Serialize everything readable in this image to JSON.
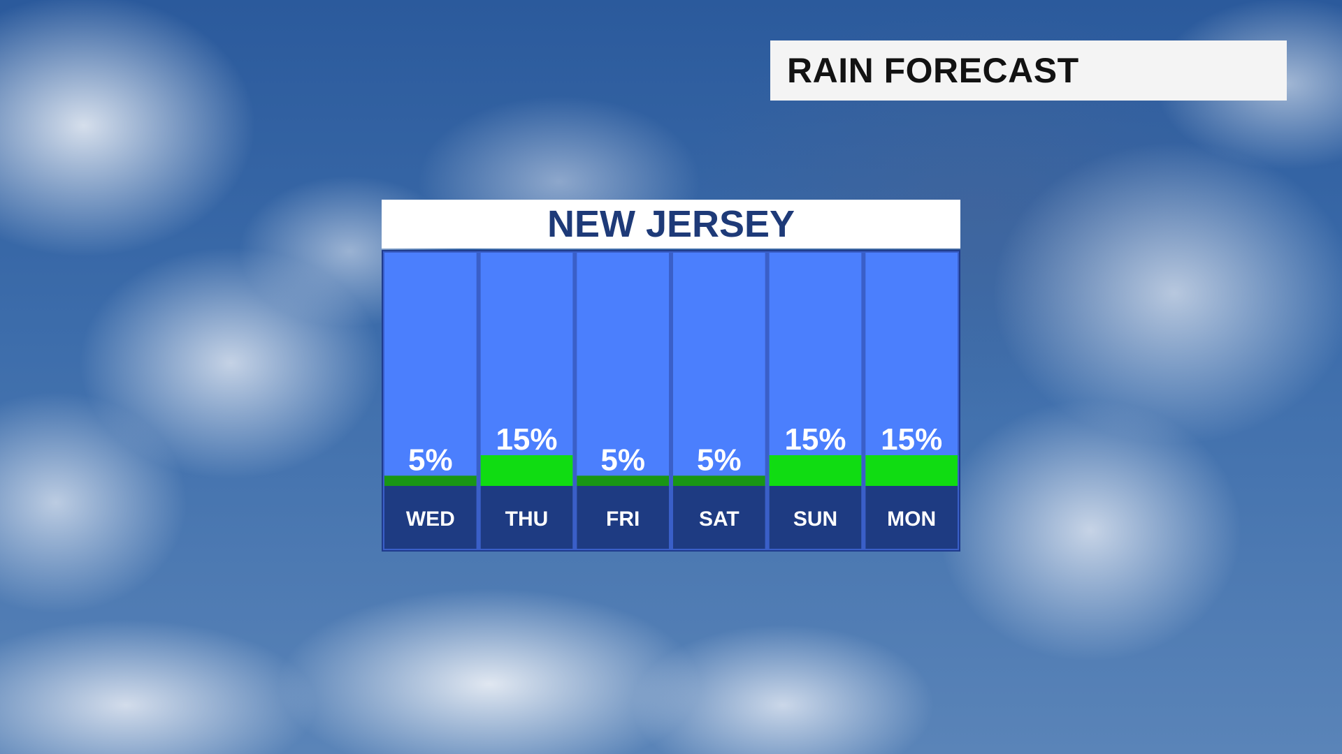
{
  "banner": {
    "title": "RAIN FORECAST"
  },
  "colors": {
    "column_background": "#4b7ffd",
    "day_box": "#1e3b82",
    "fill_low": "#199615",
    "fill_high": "#10dc12",
    "header_text": "#1e3a78"
  },
  "chart_data": {
    "type": "bar",
    "title": "NEW JERSEY",
    "categories": [
      "WED",
      "THU",
      "FRI",
      "SAT",
      "SUN",
      "MON"
    ],
    "values": [
      5,
      15,
      5,
      5,
      15,
      15
    ],
    "value_labels": [
      "5%",
      "15%",
      "5%",
      "5%",
      "15%",
      "15%"
    ],
    "ylim": [
      0,
      100
    ],
    "grid": false,
    "legend": "none"
  }
}
